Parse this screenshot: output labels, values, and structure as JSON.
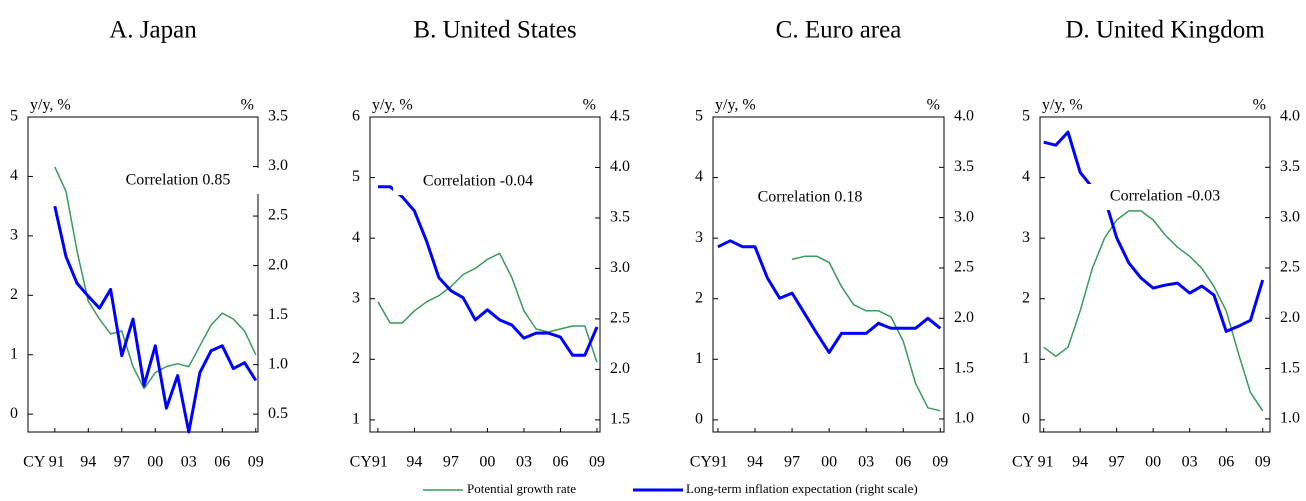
{
  "chart_data": [
    {
      "type": "line",
      "title": "A. Japan",
      "y_label": "y/y, %",
      "y2_label": "%",
      "annotation": "Correlation 0.85",
      "x": [
        1991,
        1992,
        1993,
        1994,
        1995,
        1996,
        1997,
        1998,
        1999,
        2000,
        2001,
        2002,
        2003,
        2004,
        2005,
        2006,
        2007,
        2008,
        2009
      ],
      "xlim": [
        1988.6,
        2009.2
      ],
      "xticks": [
        {
          "value": 1991,
          "label": "CY 91"
        },
        {
          "value": 1994,
          "label": "94"
        },
        {
          "value": 1997,
          "label": "97"
        },
        {
          "value": 2000,
          "label": "00"
        },
        {
          "value": 2003,
          "label": "03"
        },
        {
          "value": 2006,
          "label": "06"
        },
        {
          "value": 2009,
          "label": "09"
        }
      ],
      "ylim": [
        -0.3,
        5
      ],
      "yticks": [
        0,
        1,
        2,
        3,
        4,
        5
      ],
      "y2lim": [
        0.32,
        3.5
      ],
      "y2ticks": [
        0.5,
        {
          "value": 1,
          "label": "1.0"
        },
        1.5,
        {
          "value": 2,
          "label": "2.0"
        },
        2.5,
        {
          "value": 3,
          "label": "3.0"
        },
        3.5
      ],
      "series": [
        {
          "name": "Potential growth rate",
          "color": "#3a9a5b",
          "values": [
            4.16,
            3.75,
            2.74,
            1.9,
            1.6,
            1.35,
            1.4,
            0.8,
            0.43,
            0.7,
            0.8,
            0.85,
            0.8,
            1.15,
            1.5,
            1.7,
            1.6,
            1.4,
            1.0
          ]
        },
        {
          "name": "Long-term inflation expectation (right scale)",
          "color": "#0000ff",
          "axis": "y2",
          "values": [
            2.6,
            2.09,
            1.82,
            1.69,
            1.57,
            1.76,
            1.09,
            1.46,
            0.79,
            1.19,
            0.56,
            0.89,
            0.32,
            0.92,
            1.14,
            1.19,
            0.96,
            1.02,
            0.84
          ]
        }
      ]
    },
    {
      "type": "line",
      "title": "B. United States",
      "y_label": "y/y, %",
      "y2_label": "%",
      "annotation": "Correlation -0.04",
      "x": [
        1991,
        1992,
        1993,
        1994,
        1995,
        1996,
        1997,
        1998,
        1999,
        2000,
        2001,
        2002,
        2003,
        2004,
        2005,
        2006,
        2007,
        2008,
        2009
      ],
      "xlim": [
        1990.35,
        2009.25
      ],
      "xticks": [
        {
          "value": 1991,
          "label": "CY91"
        },
        {
          "value": 1994,
          "label": "94"
        },
        {
          "value": 1997,
          "label": "97"
        },
        {
          "value": 2000,
          "label": "00"
        },
        {
          "value": 2003,
          "label": "03"
        },
        {
          "value": 2006,
          "label": "06"
        },
        {
          "value": 2009,
          "label": "09"
        }
      ],
      "ylim": [
        0.8,
        6
      ],
      "yticks": [
        1,
        2,
        3,
        4,
        5,
        6
      ],
      "y2lim": [
        1.38,
        4.5
      ],
      "y2ticks": [
        1.5,
        {
          "value": 2,
          "label": "2.0"
        },
        2.5,
        {
          "value": 3,
          "label": "3.0"
        },
        3.5,
        {
          "value": 4,
          "label": "4.0"
        },
        4.5
      ],
      "series": [
        {
          "color": "#3a9a5b",
          "values": [
            2.95,
            2.6,
            2.6,
            2.8,
            2.95,
            3.05,
            3.2,
            3.4,
            3.5,
            3.65,
            3.75,
            3.35,
            2.8,
            2.5,
            2.45,
            2.5,
            2.55,
            2.55,
            1.95
          ]
        },
        {
          "color": "#0000ff",
          "axis": "y2",
          "values": [
            3.81,
            3.81,
            3.71,
            3.57,
            3.27,
            2.91,
            2.78,
            2.71,
            2.49,
            2.59,
            2.49,
            2.44,
            2.31,
            2.36,
            2.36,
            2.32,
            2.14,
            2.14,
            2.42
          ]
        }
      ]
    },
    {
      "type": "line",
      "title": "C. Euro area",
      "y_label": "y/y, %",
      "y2_label": "%",
      "annotation": "Correlation 0.18",
      "x": [
        1991,
        1992,
        1993,
        1994,
        1995,
        1996,
        1997,
        1998,
        1999,
        2000,
        2001,
        2002,
        2003,
        2004,
        2005,
        2006,
        2007,
        2008,
        2009
      ],
      "xlim": [
        1990.6,
        2009.3
      ],
      "xticks": [
        {
          "value": 1991,
          "label": "CY91"
        },
        {
          "value": 1994,
          "label": "94"
        },
        {
          "value": 1997,
          "label": "97"
        },
        {
          "value": 2000,
          "label": "00"
        },
        {
          "value": 2003,
          "label": "03"
        },
        {
          "value": 2006,
          "label": "06"
        },
        {
          "value": 2009,
          "label": "09"
        }
      ],
      "ylim": [
        -0.2,
        5
      ],
      "yticks": [
        0,
        1,
        2,
        3,
        4,
        5
      ],
      "y2lim": [
        0.87,
        4
      ],
      "y2ticks": [
        {
          "value": 1,
          "label": "1.0"
        },
        1.5,
        {
          "value": 2,
          "label": "2.0"
        },
        2.5,
        {
          "value": 3,
          "label": "3.0"
        },
        3.5,
        {
          "value": 4,
          "label": "4.0"
        }
      ],
      "series": [
        {
          "color": "#3a9a5b",
          "values": [
            null,
            null,
            null,
            null,
            null,
            null,
            2.65,
            2.7,
            2.7,
            2.6,
            2.2,
            1.9,
            1.8,
            1.8,
            1.7,
            1.3,
            0.6,
            0.2,
            0.15
          ]
        },
        {
          "color": "#0000ff",
          "axis": "y2",
          "values": [
            2.71,
            2.77,
            2.71,
            2.71,
            2.4,
            2.2,
            2.25,
            2.05,
            1.85,
            1.66,
            1.85,
            1.85,
            1.85,
            1.95,
            1.9,
            1.9,
            1.9,
            2.0,
            1.9
          ]
        }
      ]
    },
    {
      "type": "line",
      "title": "D. United Kingdom",
      "y_label": "y/y, %",
      "y2_label": "%",
      "annotation": "Correlation -0.03",
      "x": [
        1991,
        1992,
        1993,
        1994,
        1995,
        1996,
        1997,
        1998,
        1999,
        2000,
        2001,
        2002,
        2003,
        2004,
        2005,
        2006,
        2007,
        2008,
        2009
      ],
      "xlim": [
        1990.7,
        2009.6
      ],
      "xticks": [
        {
          "value": 1991,
          "label": "CY 91"
        },
        {
          "value": 1994,
          "label": "94"
        },
        {
          "value": 1997,
          "label": "97"
        },
        {
          "value": 2000,
          "label": "00"
        },
        {
          "value": 2003,
          "label": "03"
        },
        {
          "value": 2006,
          "label": "06"
        },
        {
          "value": 2009,
          "label": "09"
        }
      ],
      "ylim": [
        -0.2,
        5
      ],
      "yticks": [
        0,
        1,
        2,
        3,
        4,
        5
      ],
      "y2lim": [
        0.87,
        4
      ],
      "y2ticks": [
        {
          "value": 1,
          "label": "1.0"
        },
        1.5,
        {
          "value": 2,
          "label": "2.0"
        },
        2.5,
        {
          "value": 3,
          "label": "3.0"
        },
        3.5,
        {
          "value": 4,
          "label": "4.0"
        }
      ],
      "series": [
        {
          "color": "#3a9a5b",
          "values": [
            1.2,
            1.05,
            1.2,
            1.8,
            2.5,
            3.0,
            3.3,
            3.45,
            3.45,
            3.3,
            3.05,
            2.85,
            2.7,
            2.5,
            2.2,
            1.8,
            1.1,
            0.45,
            0.15
          ]
        },
        {
          "color": "#0000ff",
          "axis": "y2",
          "values": [
            3.75,
            3.72,
            3.85,
            3.45,
            3.3,
            3.2,
            2.8,
            2.55,
            2.4,
            2.3,
            2.33,
            2.35,
            2.25,
            2.32,
            2.23,
            1.87,
            1.92,
            1.98,
            2.38
          ]
        }
      ]
    }
  ]
}
